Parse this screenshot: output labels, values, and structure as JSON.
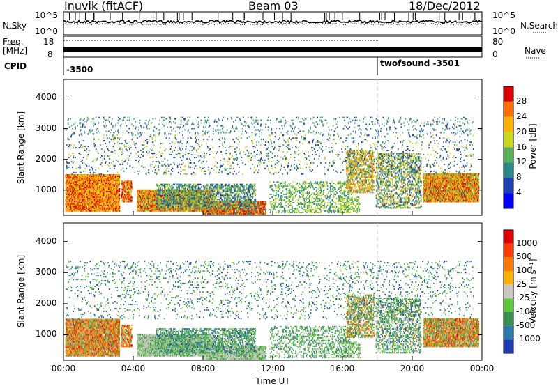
{
  "header": {
    "station": "Inuvik (fitACF)",
    "beam": "Beam 03",
    "date": "18/Dec/2012"
  },
  "strip_panels": {
    "nsky": {
      "label": "N.Sky",
      "ticks": [
        "10^5",
        "10^0"
      ],
      "right_label": "N.Search",
      "right_ticks": [
        "10^5",
        "10^0"
      ]
    },
    "freq": {
      "label_top": "Freq.",
      "label_bottom": "[MHz]",
      "ticks": [
        "18",
        "8"
      ],
      "right_label": "Nave",
      "right_ticks": [
        "80",
        "0"
      ]
    },
    "cpid": {
      "label": "CPID",
      "segments": [
        {
          "text": "-3500",
          "start_hour": 0.0
        },
        {
          "text": "twofsound -3501",
          "start_hour": 18.0
        }
      ]
    }
  },
  "chart_data": [
    {
      "type": "heatmap",
      "title": "",
      "xlabel": "",
      "ylabel": "Slant Range [km]",
      "xlim": [
        0,
        24
      ],
      "ylim": [
        180,
        4600
      ],
      "y_ticks": [
        1000,
        2000,
        3000,
        4000
      ],
      "colorbar": {
        "label": "Power [dB]",
        "ticks": [
          4,
          8,
          12,
          16,
          20,
          24,
          28
        ],
        "range": [
          0,
          32
        ],
        "colors": [
          "#0000ff",
          "#1e3fb0",
          "#2a8a8a",
          "#58b05a",
          "#c8d81e",
          "#ffb000",
          "#ff6e00",
          "#e00000"
        ]
      }
    },
    {
      "type": "heatmap",
      "title": "",
      "xlabel": "Time UT",
      "ylabel": "Slant Range [km]",
      "xlim": [
        0,
        24
      ],
      "ylim": [
        180,
        4600
      ],
      "x_ticks": [
        "00:00",
        "04:00",
        "08:00",
        "12:00",
        "16:00",
        "20:00",
        "00:00"
      ],
      "y_ticks": [
        1000,
        2000,
        3000,
        4000
      ],
      "colorbar": {
        "label": "Velocity [m s⁻¹]",
        "ticks": [
          "1000",
          "500",
          "100",
          "25",
          "-25",
          "-100",
          "-500",
          "-1000"
        ],
        "colors": [
          "#1e3cb4",
          "#2a7ab0",
          "#3a9050",
          "#5ec83c",
          "#c8c8c0",
          "#ffb000",
          "#ff7800",
          "#ff3c00",
          "#e00000"
        ]
      }
    }
  ]
}
